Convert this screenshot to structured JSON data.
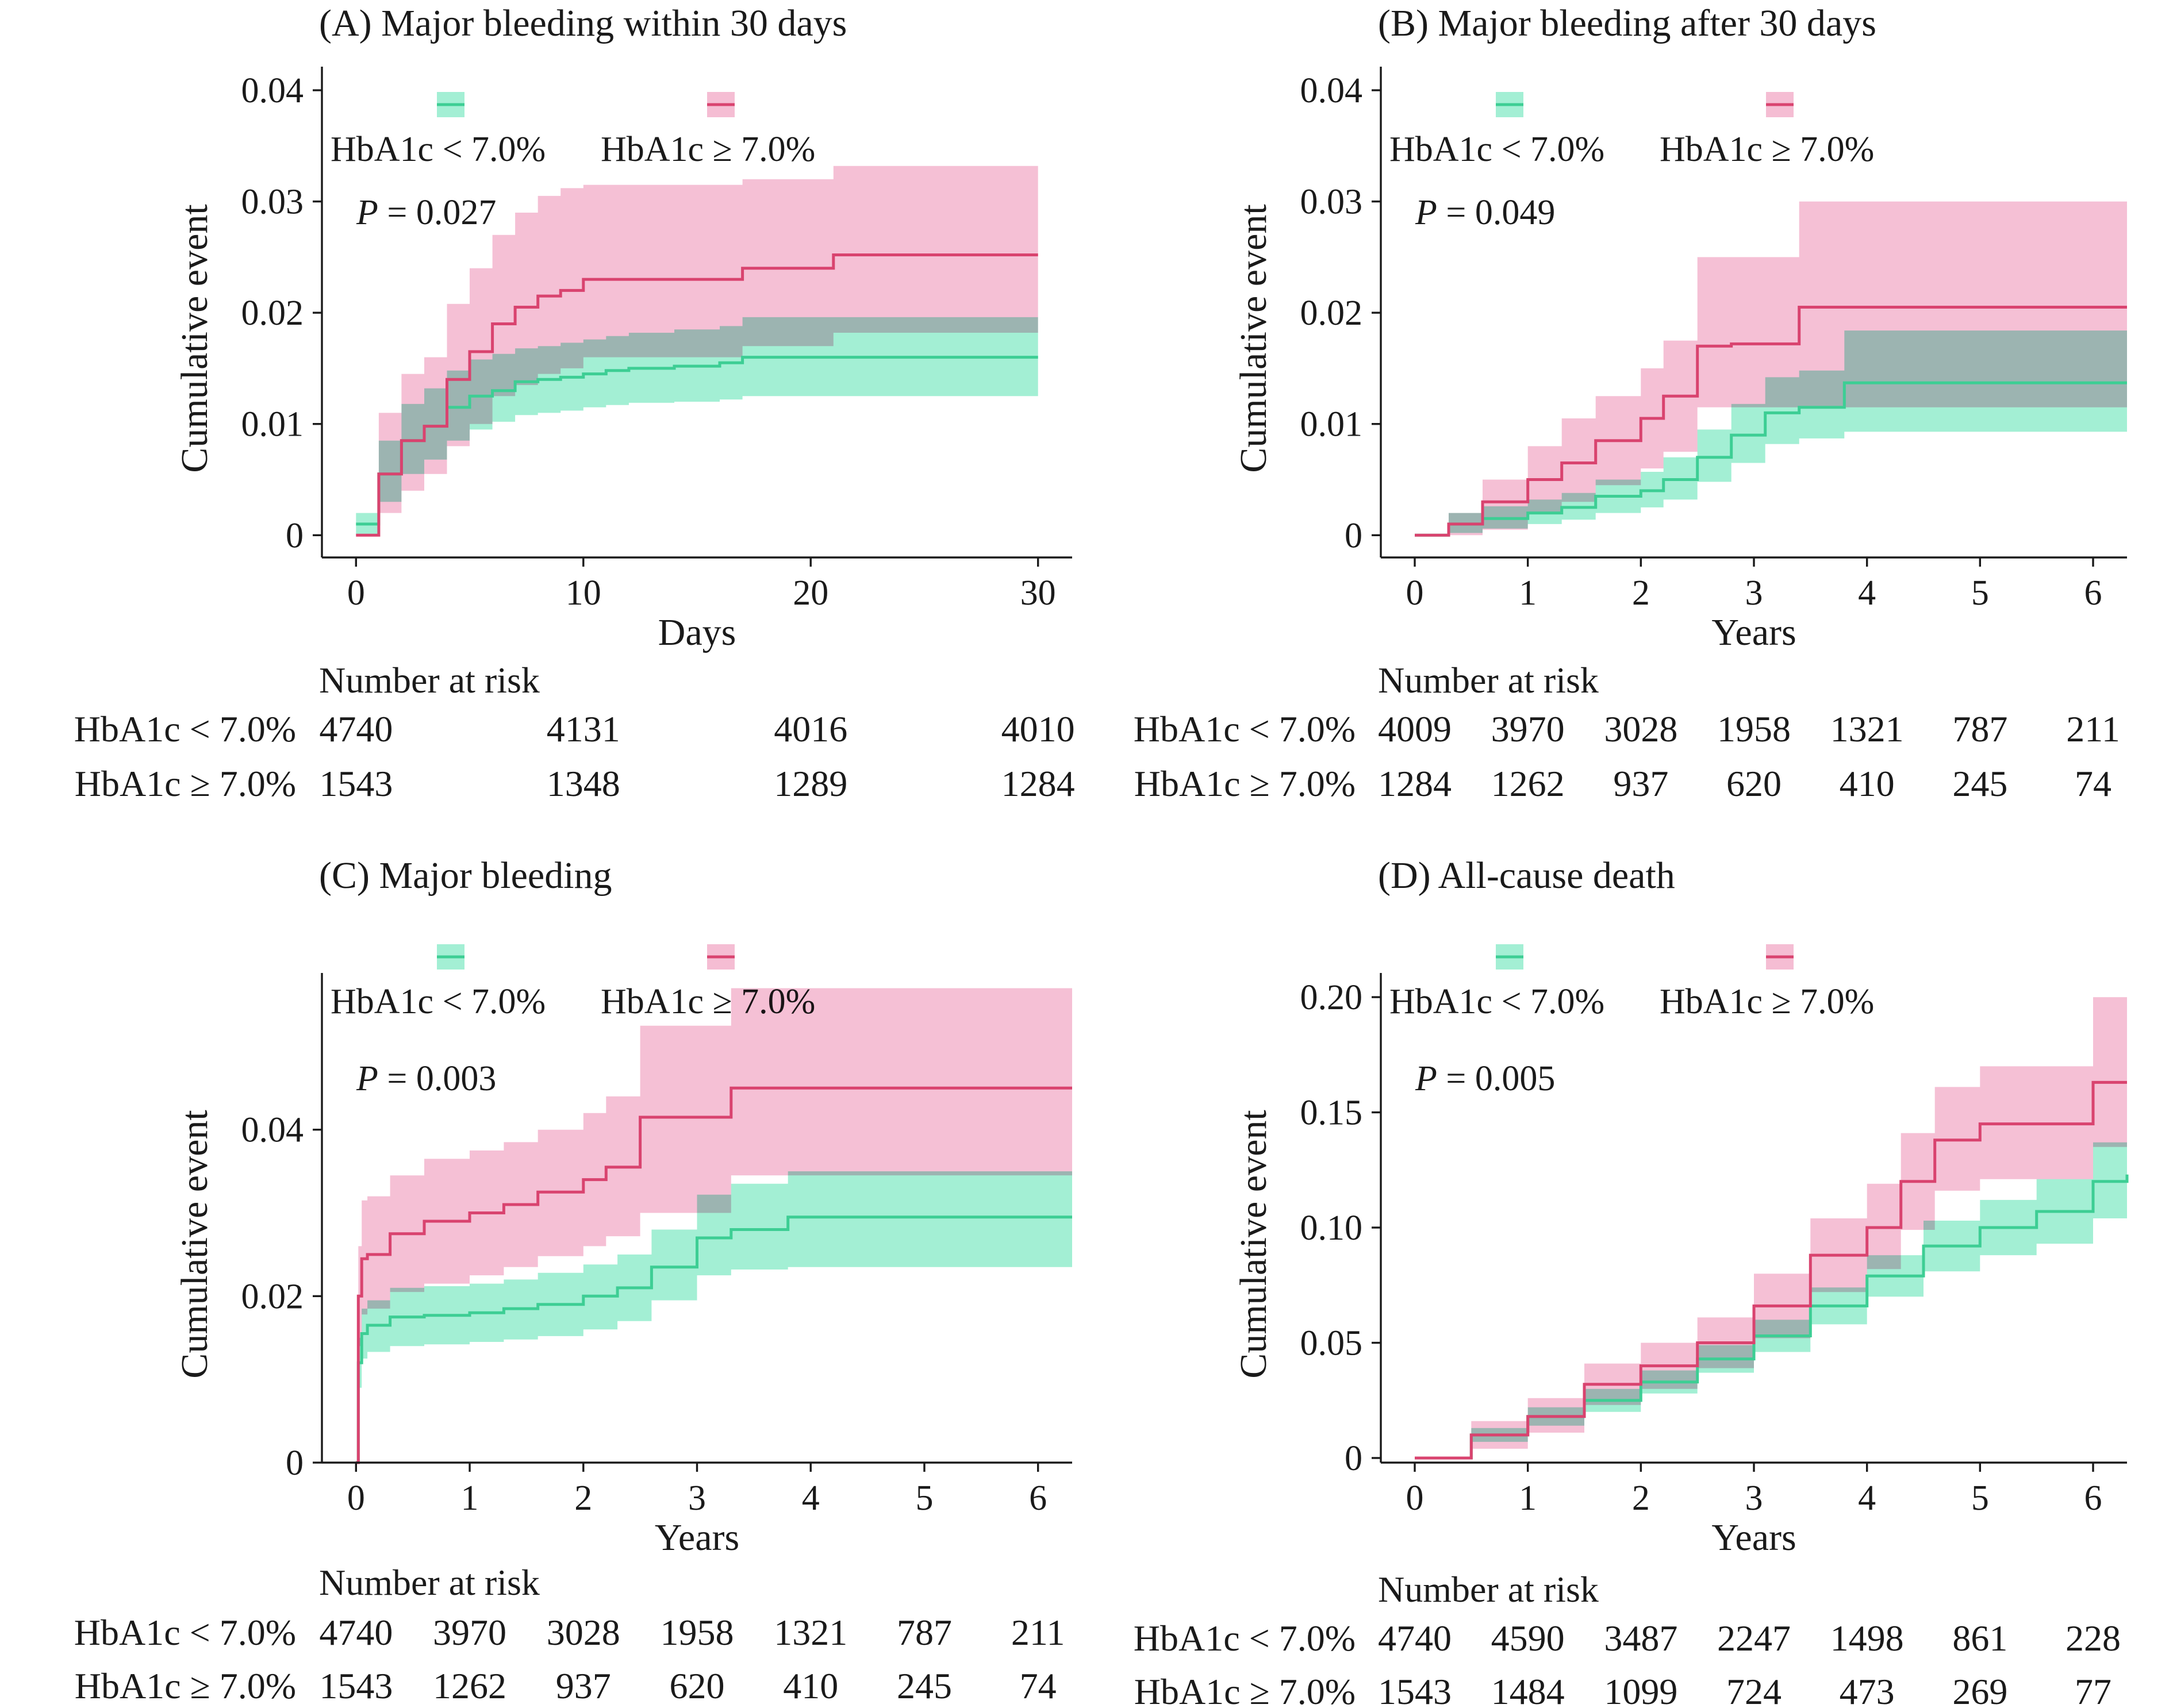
{
  "colors": {
    "low": "#3dce94",
    "low_band": "#a3efd4",
    "high": "#d9436f",
    "high_band": "#f5bdd3",
    "overlap": "#c0cccb"
  },
  "legend": {
    "low_label": "HbA1c < 7.0%",
    "high_label": "HbA1c ≥ 7.0%"
  },
  "risk_header": "Number at risk",
  "chart_data": [
    {
      "type": "line",
      "title": "(A) Major bleeding within 30 days",
      "xlabel": "Days",
      "ylabel": "Cumulative event",
      "p_prefix": "P",
      "p_value": " = 0.027",
      "xlim": [
        -1.5,
        31.5
      ],
      "ylim": [
        -0.002,
        0.0415
      ],
      "x_ticks": [
        0,
        10,
        20,
        30
      ],
      "x_tick_labels": [
        "0",
        "10",
        "20",
        "30"
      ],
      "y_ticks": [
        0,
        0.01,
        0.02,
        0.03,
        0.04
      ],
      "y_tick_labels": [
        "0",
        "0.01",
        "0.02",
        "0.03",
        "0.04"
      ],
      "series": [
        {
          "name": "HbA1c < 7.0%",
          "x": [
            0,
            1,
            2,
            3,
            4,
            5,
            6,
            7,
            8,
            9,
            10,
            11,
            12,
            14,
            16,
            17,
            20,
            30
          ],
          "y": [
            0.001,
            0.0055,
            0.0085,
            0.0098,
            0.0115,
            0.0125,
            0.013,
            0.0138,
            0.014,
            0.0142,
            0.0145,
            0.0148,
            0.015,
            0.0152,
            0.0155,
            0.016,
            0.016,
            0.016
          ],
          "lower": [
            0,
            0.003,
            0.0055,
            0.0068,
            0.0085,
            0.0095,
            0.0102,
            0.0108,
            0.011,
            0.0112,
            0.0115,
            0.0117,
            0.0119,
            0.012,
            0.0122,
            0.0125,
            0.0125,
            0.0125
          ],
          "upper": [
            0.002,
            0.0085,
            0.0118,
            0.0132,
            0.0148,
            0.0158,
            0.0163,
            0.0168,
            0.017,
            0.0173,
            0.0176,
            0.0179,
            0.0182,
            0.0185,
            0.0188,
            0.0196,
            0.0196,
            0.0196
          ]
        },
        {
          "name": "HbA1c ≥ 7.0%",
          "x": [
            0,
            1,
            2,
            3,
            4,
            5,
            6,
            7,
            8,
            9,
            10,
            17,
            21,
            30
          ],
          "y": [
            0,
            0.0055,
            0.0085,
            0.0098,
            0.014,
            0.0165,
            0.019,
            0.0205,
            0.0215,
            0.022,
            0.023,
            0.024,
            0.0252,
            0.0252
          ],
          "lower": [
            0,
            0.002,
            0.004,
            0.0055,
            0.008,
            0.01,
            0.0125,
            0.0135,
            0.0145,
            0.015,
            0.016,
            0.017,
            0.0182,
            0.0182
          ],
          "upper": [
            0,
            0.011,
            0.0145,
            0.016,
            0.0208,
            0.024,
            0.027,
            0.029,
            0.0305,
            0.0312,
            0.0315,
            0.032,
            0.0332,
            0.0332
          ]
        }
      ],
      "risk_x": [
        0,
        10,
        20,
        30
      ],
      "risk_low": [
        "4740",
        "4131",
        "4016",
        "4010"
      ],
      "risk_high": [
        "1543",
        "1348",
        "1289",
        "1284"
      ]
    },
    {
      "type": "line",
      "title": "(B) Major bleeding after 30 days",
      "xlabel": "Years",
      "ylabel": "Cumulative event",
      "p_prefix": "P",
      "p_value": " = 0.049",
      "xlim": [
        -0.3,
        6.3
      ],
      "ylim": [
        -0.002,
        0.0415
      ],
      "x_ticks": [
        0,
        1,
        2,
        3,
        4,
        5,
        6
      ],
      "x_tick_labels": [
        "0",
        "1",
        "2",
        "3",
        "4",
        "5",
        "6"
      ],
      "y_ticks": [
        0,
        0.01,
        0.02,
        0.03,
        0.04
      ],
      "y_tick_labels": [
        "0",
        "0.01",
        "0.02",
        "0.03",
        "0.04"
      ],
      "series": [
        {
          "name": "HbA1c < 7.0%",
          "x": [
            0,
            0.3,
            0.6,
            1.0,
            1.3,
            1.6,
            2.0,
            2.2,
            2.5,
            2.8,
            3.1,
            3.4,
            3.8,
            6.3
          ],
          "y": [
            0,
            0.001,
            0.0015,
            0.002,
            0.0025,
            0.0035,
            0.004,
            0.005,
            0.007,
            0.009,
            0.011,
            0.0115,
            0.0137,
            0.0137
          ],
          "lower": [
            0,
            0.0002,
            0.0006,
            0.001,
            0.0014,
            0.002,
            0.0025,
            0.0032,
            0.0048,
            0.0065,
            0.0082,
            0.0087,
            0.0093,
            0.0093
          ],
          "upper": [
            0,
            0.002,
            0.0026,
            0.0032,
            0.0038,
            0.005,
            0.0057,
            0.007,
            0.0095,
            0.0118,
            0.0142,
            0.0148,
            0.0184,
            0.0184
          ]
        },
        {
          "name": "HbA1c ≥ 7.0%",
          "x": [
            0,
            0.3,
            0.6,
            1.0,
            1.3,
            1.6,
            2.0,
            2.2,
            2.5,
            2.8,
            3.1,
            3.4,
            6.3
          ],
          "y": [
            0,
            0.001,
            0.003,
            0.005,
            0.0065,
            0.0085,
            0.0105,
            0.0125,
            0.017,
            0.0172,
            0.0172,
            0.0205,
            0.0205
          ],
          "lower": [
            0,
            0,
            0.0005,
            0.002,
            0.003,
            0.0045,
            0.006,
            0.0075,
            0.0115,
            0.0115,
            0.0115,
            0.0115,
            0.0115
          ],
          "upper": [
            0,
            0.002,
            0.005,
            0.008,
            0.0105,
            0.0125,
            0.015,
            0.0175,
            0.025,
            0.025,
            0.025,
            0.03,
            0.03
          ]
        }
      ],
      "risk_x": [
        0,
        1,
        2,
        3,
        4,
        5,
        6
      ],
      "risk_low": [
        "4009",
        "3970",
        "3028",
        "1958",
        "1321",
        "787",
        "211"
      ],
      "risk_high": [
        "1284",
        "1262",
        "937",
        "620",
        "410",
        "245",
        "74"
      ]
    },
    {
      "type": "line",
      "title": "(C) Major bleeding",
      "xlabel": "Years",
      "ylabel": "Cumulative event",
      "p_prefix": "P",
      "p_value": " = 0.003",
      "xlim": [
        -0.3,
        6.3
      ],
      "ylim": [
        0,
        0.058
      ],
      "x_ticks": [
        0,
        1,
        2,
        3,
        4,
        5,
        6
      ],
      "x_tick_labels": [
        "0",
        "1",
        "2",
        "3",
        "4",
        "5",
        "6"
      ],
      "y_ticks": [
        0,
        0.02,
        0.04
      ],
      "y_tick_labels": [
        "0",
        "0.02",
        "0.04"
      ],
      "series": [
        {
          "name": "HbA1c < 7.0%",
          "x": [
            0,
            0.02,
            0.05,
            0.1,
            0.3,
            0.6,
            1.0,
            1.3,
            1.6,
            2.0,
            2.3,
            2.6,
            3.0,
            3.3,
            3.8,
            6.3
          ],
          "y": [
            0,
            0.012,
            0.0155,
            0.0165,
            0.0175,
            0.0177,
            0.018,
            0.0185,
            0.019,
            0.02,
            0.021,
            0.0235,
            0.027,
            0.028,
            0.0295,
            0.0295
          ],
          "lower": [
            0,
            0.009,
            0.0125,
            0.0133,
            0.014,
            0.0142,
            0.0145,
            0.0148,
            0.0152,
            0.016,
            0.017,
            0.0195,
            0.0225,
            0.0232,
            0.0235,
            0.0235
          ],
          "upper": [
            0,
            0.015,
            0.0185,
            0.0195,
            0.021,
            0.0212,
            0.0215,
            0.022,
            0.0228,
            0.0238,
            0.025,
            0.028,
            0.0322,
            0.0335,
            0.035,
            0.035
          ]
        },
        {
          "name": "HbA1c ≥ 7.0%",
          "x": [
            0,
            0.02,
            0.05,
            0.1,
            0.3,
            0.6,
            1.0,
            1.3,
            1.6,
            2.0,
            2.2,
            2.5,
            3.0,
            3.3,
            6.3
          ],
          "y": [
            0,
            0.02,
            0.0245,
            0.025,
            0.0275,
            0.029,
            0.03,
            0.031,
            0.0325,
            0.034,
            0.0355,
            0.0415,
            0.0415,
            0.045,
            0.045
          ],
          "lower": [
            0,
            0.014,
            0.0178,
            0.0185,
            0.0205,
            0.0215,
            0.0225,
            0.0235,
            0.0248,
            0.026,
            0.0272,
            0.03,
            0.03,
            0.0345,
            0.0345
          ],
          "upper": [
            0,
            0.026,
            0.0315,
            0.032,
            0.0345,
            0.0365,
            0.0375,
            0.0385,
            0.04,
            0.042,
            0.044,
            0.0525,
            0.0525,
            0.057,
            0.057
          ]
        }
      ],
      "risk_x": [
        0,
        1,
        2,
        3,
        4,
        5,
        6
      ],
      "risk_low": [
        "4740",
        "3970",
        "3028",
        "1958",
        "1321",
        "787",
        "211"
      ],
      "risk_high": [
        "1543",
        "1262",
        "937",
        "620",
        "410",
        "245",
        "74"
      ]
    },
    {
      "type": "line",
      "title": "(D) All-cause death",
      "xlabel": "Years",
      "ylabel": "Cumulative event",
      "p_prefix": "P",
      "p_value": " = 0.005",
      "xlim": [
        -0.3,
        6.3
      ],
      "ylim": [
        -0.002,
        0.2075
      ],
      "x_ticks": [
        0,
        1,
        2,
        3,
        4,
        5,
        6
      ],
      "x_tick_labels": [
        "0",
        "1",
        "2",
        "3",
        "4",
        "5",
        "6"
      ],
      "y_ticks": [
        0,
        0.05,
        0.1,
        0.15,
        0.2
      ],
      "y_tick_labels": [
        "0",
        "0.05",
        "0.10",
        "0.15",
        "0.20"
      ],
      "series": [
        {
          "name": "HbA1c < 7.0%",
          "x": [
            0,
            0.5,
            1.0,
            1.5,
            2.0,
            2.5,
            3.0,
            3.5,
            4.0,
            4.5,
            5.0,
            5.5,
            6.0,
            6.3
          ],
          "y": [
            0,
            0.01,
            0.018,
            0.025,
            0.033,
            0.043,
            0.053,
            0.066,
            0.079,
            0.092,
            0.1,
            0.107,
            0.12,
            0.123
          ],
          "lower": [
            0,
            0.007,
            0.014,
            0.02,
            0.028,
            0.037,
            0.046,
            0.058,
            0.07,
            0.081,
            0.088,
            0.093,
            0.104,
            0.107
          ],
          "upper": [
            0,
            0.013,
            0.022,
            0.03,
            0.038,
            0.049,
            0.06,
            0.074,
            0.088,
            0.103,
            0.112,
            0.121,
            0.137,
            0.142
          ]
        },
        {
          "name": "HbA1c ≥ 7.0%",
          "x": [
            0,
            0.5,
            1.0,
            1.5,
            2.0,
            2.5,
            3.0,
            3.5,
            4.0,
            4.3,
            4.6,
            5.0,
            5.5,
            5.95,
            6.0,
            6.3
          ],
          "y": [
            0,
            0.01,
            0.018,
            0.032,
            0.04,
            0.05,
            0.066,
            0.088,
            0.1,
            0.12,
            0.138,
            0.145,
            0.145,
            0.145,
            0.163,
            0.163
          ],
          "lower": [
            0,
            0.004,
            0.011,
            0.023,
            0.03,
            0.039,
            0.052,
            0.072,
            0.082,
            0.099,
            0.116,
            0.121,
            0.121,
            0.121,
            0.135,
            0.135
          ],
          "upper": [
            0,
            0.016,
            0.026,
            0.041,
            0.05,
            0.061,
            0.08,
            0.104,
            0.119,
            0.141,
            0.161,
            0.17,
            0.17,
            0.17,
            0.2,
            0.2
          ]
        }
      ],
      "risk_x": [
        0,
        1,
        2,
        3,
        4,
        5,
        6
      ],
      "risk_low": [
        "4740",
        "4590",
        "3487",
        "2247",
        "1498",
        "861",
        "228"
      ],
      "risk_high": [
        "1543",
        "1484",
        "1099",
        "724",
        "473",
        "269",
        "77"
      ]
    }
  ]
}
